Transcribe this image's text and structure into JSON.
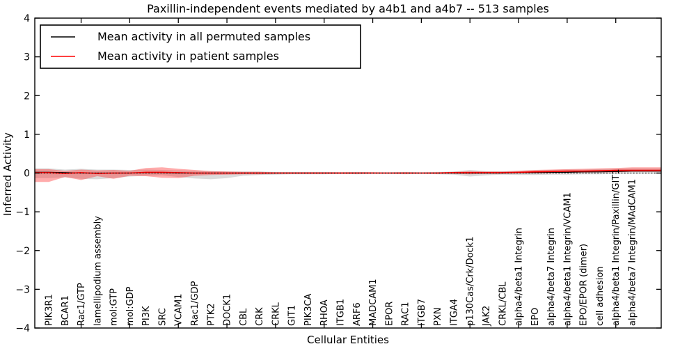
{
  "figure": {
    "title": "Paxillin-independent events mediated by a4b1 and a4b7 -- 513 samples",
    "xlabel": "Cellular Entities",
    "ylabel": "Inferred Activity"
  },
  "legend": {
    "items": [
      {
        "label": "Mean activity in all permuted samples",
        "color": "#000000"
      },
      {
        "label": "Mean activity in patient samples",
        "color": "#ff0000"
      }
    ]
  },
  "colors": {
    "background": "#ffffff",
    "axes": "#000000",
    "permuted_line": "#000000",
    "patient_line": "#ff0000",
    "permuted_band": "#c0c0c0",
    "patient_band": "#ff3333",
    "zero_line": "#000000"
  },
  "chart_data": {
    "type": "line",
    "title": "Paxillin-independent events mediated by a4b1 and a4b7 -- 513 samples",
    "xlabel": "Cellular Entities",
    "ylabel": "Inferred Activity",
    "ylim": [
      -4,
      4
    ],
    "yticks": [
      4,
      3,
      2,
      1,
      0,
      -1,
      -2,
      -3,
      -4
    ],
    "ytick_labels": [
      "4",
      "3",
      "2",
      "1",
      "0",
      "−1",
      "−2",
      "−3",
      "−4"
    ],
    "grid": false,
    "legend_position": "upper left",
    "zero_line": {
      "y": 0,
      "style": "dotted"
    },
    "categories": [
      "PIK3R1",
      "BCAR1",
      "Rac1/GTP",
      "lamellipodium assembly",
      "mol:GTP",
      "mol:GDP",
      "PI3K",
      "SRC",
      "VCAM1",
      "Rac1/GDP",
      "PTK2",
      "DOCK1",
      "CBL",
      "CRK",
      "CRKL",
      "GIT1",
      "PIK3CA",
      "RHOA",
      "ITGB1",
      "ARF6",
      "MADCAM1",
      "EPOR",
      "RAC1",
      "ITGB7",
      "PXN",
      "ITGA4",
      "p130Cas/Crk/Dock1",
      "JAK2",
      "CRKL/CBL",
      "alpha4/beta1 Integrin",
      "EPO",
      "alpha4/beta7 Integrin",
      "alpha4/beta1 Integrin/VCAM1",
      "EPO/EPOR (dimer)",
      "cell adhesion",
      "alpha4/beta1 Integrin/Paxillin/GIT1",
      "alpha4/beta7 Integrin/MAdCAM1"
    ],
    "series": [
      {
        "name": "Mean activity in all permuted samples",
        "color": "#000000",
        "values": [
          0.02,
          0.01,
          0.0,
          0.0,
          0.0,
          0.0,
          0.01,
          0.01,
          0.0,
          0.0,
          0.0,
          0.0,
          0.0,
          0.0,
          0.0,
          0.0,
          0.0,
          0.0,
          0.0,
          0.0,
          0.0,
          0.0,
          0.0,
          0.0,
          0.0,
          0.0,
          0.0,
          0.0,
          0.0,
          0.01,
          0.01,
          0.02,
          0.02,
          0.03,
          0.03,
          0.04,
          0.05
        ]
      },
      {
        "name": "Mean activity in patient samples",
        "color": "#ff0000",
        "values": [
          0.01,
          -0.01,
          0.01,
          -0.01,
          0.0,
          0.0,
          0.02,
          0.02,
          0.01,
          0.0,
          0.0,
          0.0,
          0.0,
          0.0,
          0.0,
          0.0,
          0.0,
          0.0,
          0.0,
          0.0,
          0.0,
          0.0,
          0.0,
          0.0,
          0.0,
          0.01,
          0.01,
          0.01,
          0.01,
          0.02,
          0.03,
          0.04,
          0.05,
          0.05,
          0.06,
          0.07,
          0.07
        ]
      }
    ],
    "bands": [
      {
        "name": "permuted samples range",
        "color": "#b0b0b0",
        "opacity": 0.45,
        "upper": [
          0.12,
          0.09,
          0.11,
          0.09,
          0.09,
          0.08,
          0.09,
          0.08,
          0.07,
          0.06,
          0.05,
          0.04,
          0.04,
          0.04,
          0.03,
          0.03,
          0.03,
          0.03,
          0.02,
          0.03,
          0.02,
          0.02,
          0.03,
          0.02,
          0.03,
          0.04,
          0.08,
          0.05,
          0.05,
          0.06,
          0.07,
          0.08,
          0.09,
          0.09,
          0.1,
          0.11,
          0.12
        ],
        "lower": [
          -0.13,
          -0.11,
          -0.15,
          -0.16,
          -0.13,
          -0.09,
          -0.07,
          -0.06,
          -0.1,
          -0.14,
          -0.16,
          -0.13,
          -0.07,
          -0.05,
          -0.04,
          -0.03,
          -0.03,
          -0.03,
          -0.02,
          -0.03,
          -0.02,
          -0.02,
          -0.03,
          -0.02,
          -0.03,
          -0.04,
          -0.09,
          -0.06,
          -0.04,
          -0.05,
          -0.05,
          -0.04,
          -0.04,
          -0.03,
          -0.03,
          -0.02,
          -0.02
        ]
      },
      {
        "name": "patient samples range",
        "color": "#ff2222",
        "opacity": 0.38,
        "upper": [
          0.1,
          0.06,
          0.09,
          0.07,
          0.08,
          0.06,
          0.13,
          0.15,
          0.11,
          0.08,
          0.05,
          0.04,
          0.03,
          0.03,
          0.02,
          0.02,
          0.02,
          0.02,
          0.02,
          0.02,
          0.02,
          0.01,
          0.02,
          0.01,
          0.02,
          0.03,
          0.05,
          0.04,
          0.04,
          0.06,
          0.08,
          0.09,
          0.1,
          0.11,
          0.12,
          0.13,
          0.15
        ],
        "lower": [
          -0.23,
          -0.1,
          -0.18,
          -0.08,
          -0.15,
          -0.07,
          -0.08,
          -0.12,
          -0.13,
          -0.07,
          -0.05,
          -0.04,
          -0.03,
          -0.03,
          -0.02,
          -0.02,
          -0.02,
          -0.02,
          -0.02,
          -0.02,
          -0.01,
          -0.01,
          -0.02,
          -0.01,
          -0.02,
          -0.02,
          -0.03,
          -0.02,
          -0.02,
          -0.01,
          0.0,
          0.0,
          0.01,
          0.01,
          0.02,
          0.02,
          0.03
        ]
      }
    ]
  }
}
